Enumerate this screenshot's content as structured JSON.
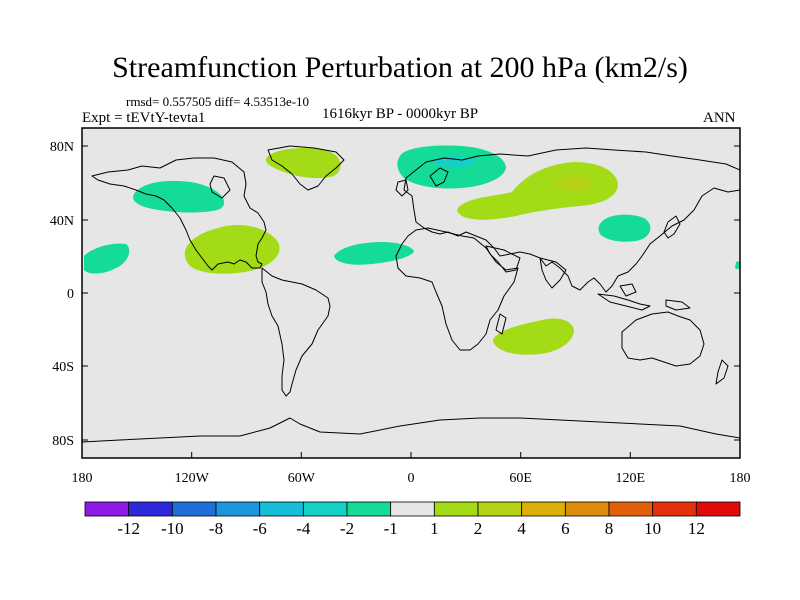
{
  "title": "Streamfunction Perturbation at 200 hPa (km2/s)",
  "stats_line": "rmsd= 0.557505 diff= 4.53513e-10",
  "experiment_label": "Expt = tEVtY-tevta1",
  "period_label": "1616kyr BP - 0000kyr BP",
  "season_label": "ANN",
  "map": {
    "projection": "cylindrical equidistant",
    "lon_range": [
      -180,
      180
    ],
    "lat_range": [
      -90,
      90
    ],
    "background_color": "#e6e6e6",
    "x_tick_labels": [
      "180",
      "120W",
      "60W",
      "0",
      "60E",
      "120E",
      "180"
    ],
    "y_tick_labels": [
      "80N",
      "40N",
      "0",
      "40S",
      "80S"
    ]
  },
  "chart_data": {
    "type": "heatmap",
    "title": "Streamfunction Perturbation at 200 hPa (km2/s)",
    "units": "km2/s",
    "colorbar": {
      "labels": [
        "-12",
        "-10",
        "-8",
        "-6",
        "-4",
        "-2",
        "-1",
        "1",
        "2",
        "4",
        "6",
        "8",
        "10",
        "12"
      ],
      "colors": [
        "#8d1ae6",
        "#2d28dc",
        "#1e6fd8",
        "#1f95e0",
        "#16bdd6",
        "#13d1c4",
        "#14dc96",
        "#e6e6e6",
        "#a3dc16",
        "#b5d214",
        "#dcb00a",
        "#dc8c0c",
        "#e2600c",
        "#e4300c",
        "#e00a0a"
      ]
    },
    "anomalies": [
      {
        "region": "North Pacific near Hawaii",
        "lon": -162,
        "lat": 20,
        "category": "-1 to -2"
      },
      {
        "region": "Western Canada / Alaska",
        "lon": -126,
        "lat": 53,
        "category": "-1 to -2"
      },
      {
        "region": "Greenland",
        "lon": -44,
        "lat": 73,
        "category": "1 to 2"
      },
      {
        "region": "Gulf of Mexico / Central America",
        "lon": -100,
        "lat": 26,
        "category": "1 to 2"
      },
      {
        "region": "Tropical Atlantic",
        "lon": -36,
        "lat": 20,
        "category": "-1 to -2"
      },
      {
        "region": "Scandinavia / Northern Europe",
        "lon": 26,
        "lat": 72,
        "category": "-1 to -4"
      },
      {
        "region": "Eurasia (Caspian to Siberia)",
        "lon": 78,
        "lat": 55,
        "category": "1 to 4"
      },
      {
        "region": "East China / Korea",
        "lon": 116,
        "lat": 36,
        "category": "-1 to -2"
      },
      {
        "region": "South Indian Ocean",
        "lon": 70,
        "lat": -20,
        "category": "1 to 2"
      }
    ]
  }
}
